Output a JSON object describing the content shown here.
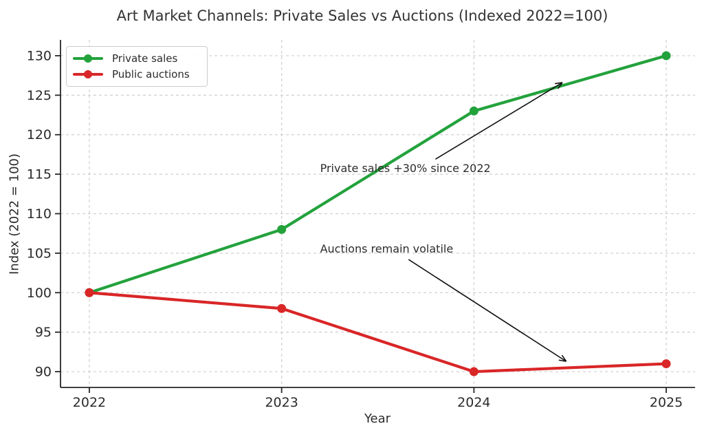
{
  "chart_data": {
    "type": "line",
    "title": "Art Market Channels: Private Sales vs Auctions (Indexed 2022=100)",
    "xlabel": "Year",
    "ylabel": "Index (2022 = 100)",
    "x": [
      2022,
      2023,
      2024,
      2025
    ],
    "xticks": [
      2022,
      2023,
      2024,
      2025
    ],
    "yticks": [
      90,
      95,
      100,
      105,
      110,
      115,
      120,
      125,
      130
    ],
    "xlim": [
      2021.85,
      2025.15
    ],
    "ylim": [
      88,
      132
    ],
    "grid": true,
    "legend_position": "upper left",
    "series": [
      {
        "name": "Private sales",
        "color": "#23a23c",
        "values": [
          100,
          108,
          123,
          130
        ]
      },
      {
        "name": "Public auctions",
        "color": "#d92627",
        "values": [
          100,
          98,
          90,
          91
        ]
      }
    ],
    "annotations": [
      {
        "text": "Private sales +30% since 2022",
        "text_pos": [
          2023.2,
          115.7
        ],
        "arrow_from": [
          2023.8,
          116.9
        ],
        "arrow_to": [
          2024.46,
          126.6
        ]
      },
      {
        "text": "Auctions remain volatile",
        "text_pos": [
          2023.2,
          105.5
        ],
        "arrow_from": [
          2023.66,
          104.2
        ],
        "arrow_to": [
          2024.48,
          91.3
        ]
      }
    ],
    "colors": {
      "grid": "#cfcfcf",
      "axis": "#262626",
      "tick_text": "#2b2b2b",
      "annotation_arrow": "#111111"
    }
  }
}
